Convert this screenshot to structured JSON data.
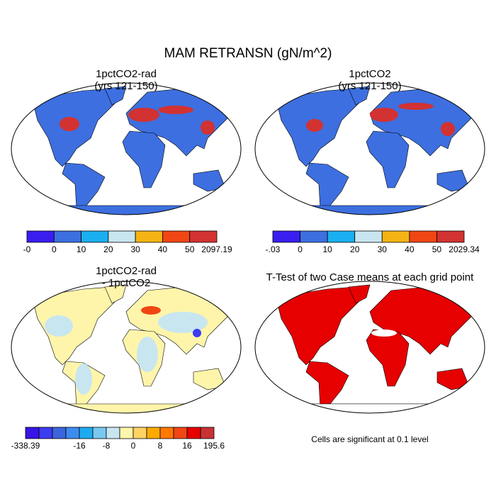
{
  "title": "MAM RETRANSN (gN/m^2)",
  "panels": [
    {
      "title": [
        "1pctCO2-rad",
        "(yrs 121-150)"
      ],
      "colorbar": {
        "colors": [
          "#3a1ef0",
          "#3d6fe0",
          "#1aaff0",
          "#c8e6f0",
          "#f5b414",
          "#f04614",
          "#d23232"
        ],
        "labels": [
          "-0",
          "0",
          "10",
          "20",
          "30",
          "40",
          "50",
          "2097.19"
        ]
      }
    },
    {
      "title": [
        "1pctCO2",
        "(yrs 121-150)"
      ],
      "colorbar": {
        "colors": [
          "#3a1ef0",
          "#3d6fe0",
          "#1aaff0",
          "#c8e6f0",
          "#f5b414",
          "#f04614",
          "#d23232"
        ],
        "labels": [
          "-.03",
          "0",
          "10",
          "20",
          "30",
          "40",
          "50",
          "2029.34"
        ]
      }
    },
    {
      "title": [
        "1pctCO2-rad",
        "- 1pctCO2"
      ],
      "colorbar": {
        "colors": [
          "#3a14e6",
          "#3c3cf0",
          "#3c64dc",
          "#3c8cf0",
          "#1eaaf0",
          "#78c8f0",
          "#c8e6f0",
          "#fff5aa",
          "#ffd264",
          "#ffaa00",
          "#ff7800",
          "#f04614",
          "#e60000",
          "#c83232"
        ],
        "labels": [
          "-338.39",
          null,
          null,
          null,
          "-16",
          null,
          "-8",
          null,
          "0",
          null,
          "8",
          null,
          "16",
          null,
          "195.6"
        ]
      }
    },
    {
      "title": [
        "T-Test of two Case means at each grid point"
      ],
      "note": "Cells are significant at 0.1 level"
    }
  ]
}
